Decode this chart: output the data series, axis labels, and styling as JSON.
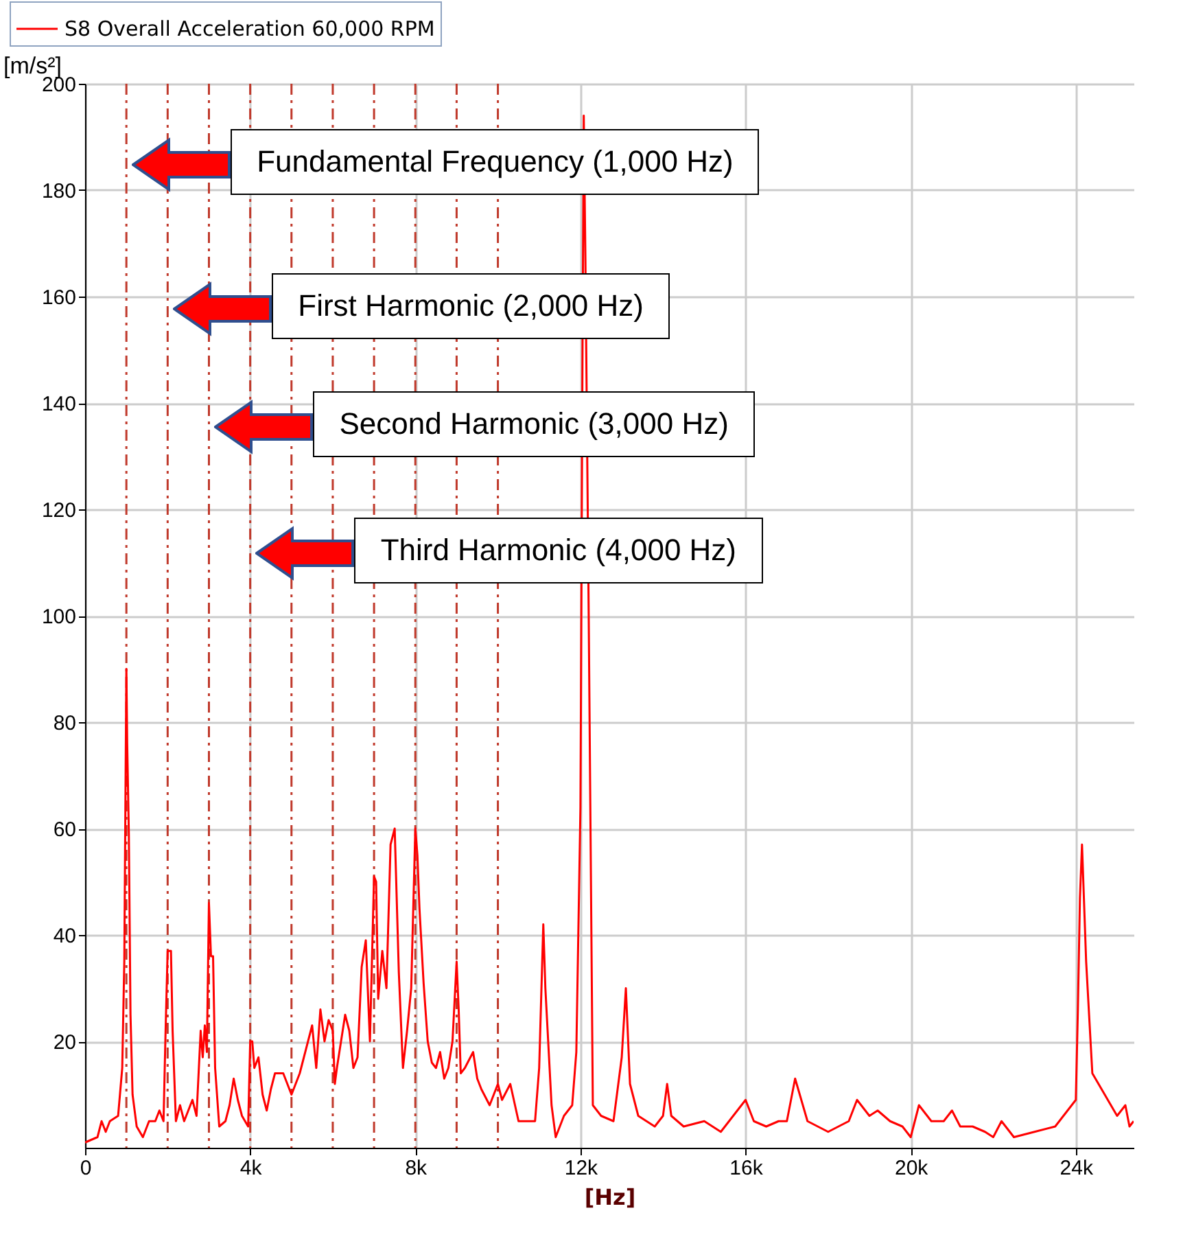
{
  "chart_data": {
    "type": "line",
    "xlabel": "[Hz]",
    "ylabel": "[m/s²]",
    "xlim": [
      0,
      25400
    ],
    "ylim": [
      0,
      200
    ],
    "xticks": [
      0,
      {
        "value": 4000,
        "label": "4k"
      },
      {
        "value": 8000,
        "label": "8k"
      },
      {
        "value": 12000,
        "label": "12k"
      },
      {
        "value": 16000,
        "label": "16k"
      },
      {
        "value": 20000,
        "label": "20k"
      },
      {
        "value": 24000,
        "label": "24k"
      }
    ],
    "yticks": [
      20,
      40,
      60,
      80,
      100,
      120,
      140,
      160,
      180,
      200
    ],
    "grid": true,
    "legend": "top left",
    "line_style": "solid",
    "marker": "none",
    "x": [
      0,
      300,
      400,
      500,
      600,
      800,
      900,
      950,
      1000,
      1020,
      1060,
      1100,
      1150,
      1250,
      1400,
      1550,
      1700,
      1800,
      1900,
      1950,
      2000,
      2080,
      2120,
      2200,
      2300,
      2400,
      2500,
      2600,
      2700,
      2800,
      2850,
      2900,
      2950,
      3000,
      3050,
      3100,
      3150,
      3250,
      3400,
      3500,
      3600,
      3700,
      3800,
      3950,
      4000,
      4050,
      4100,
      4200,
      4300,
      4400,
      4500,
      4600,
      4800,
      4900,
      5000,
      5100,
      5200,
      5300,
      5500,
      5600,
      5700,
      5800,
      5900,
      6000,
      6050,
      6100,
      6200,
      6300,
      6400,
      6500,
      6600,
      6700,
      6800,
      6900,
      7000,
      7050,
      7100,
      7200,
      7300,
      7400,
      7500,
      7600,
      7700,
      7800,
      7900,
      8000,
      8050,
      8100,
      8200,
      8300,
      8400,
      8500,
      8600,
      8700,
      8800,
      8900,
      9000,
      9050,
      9100,
      9200,
      9400,
      9500,
      9600,
      9800,
      10000,
      10100,
      10300,
      10500,
      10900,
      11000,
      11100,
      11150,
      11300,
      11400,
      11600,
      11800,
      11900,
      12000,
      12050,
      12080,
      12120,
      12200,
      12300,
      12500,
      12800,
      13000,
      13100,
      13200,
      13400,
      13800,
      14000,
      14100,
      14200,
      14500,
      15000,
      15400,
      15600,
      16000,
      16200,
      16500,
      16800,
      17000,
      17200,
      17500,
      18000,
      18500,
      18700,
      19000,
      19200,
      19500,
      19800,
      20000,
      20200,
      20500,
      20800,
      21000,
      21200,
      21500,
      21800,
      22000,
      22200,
      22500,
      23000,
      23500,
      23800,
      24000,
      24050,
      24100,
      24150,
      24250,
      24400,
      24700,
      25000,
      25200,
      25300,
      25400
    ],
    "series": [
      {
        "name": "S8 Overall Acceleration 60,000 RPM",
        "color": "#ff0000",
        "values": [
          1,
          2,
          5,
          3,
          5,
          6,
          15,
          35,
          90,
          76,
          59,
          25,
          10,
          4,
          2,
          5,
          5,
          7,
          5,
          22,
          37,
          37,
          22,
          5,
          8,
          5,
          7,
          9,
          6,
          22,
          17,
          23,
          18,
          46,
          36,
          36,
          15,
          4,
          5,
          8,
          13,
          9,
          6,
          4,
          20,
          20,
          15,
          17,
          10,
          7,
          11,
          14,
          14,
          12,
          10,
          12,
          14,
          17,
          23,
          15,
          26,
          20,
          24,
          22,
          12,
          15,
          20,
          25,
          22,
          15,
          17,
          34,
          39,
          20,
          51,
          50,
          28,
          37,
          30,
          57,
          60,
          33,
          15,
          22,
          30,
          60,
          55,
          45,
          31,
          20,
          16,
          15,
          18,
          13,
          15,
          20,
          35,
          26,
          14,
          15,
          18,
          13,
          11,
          8,
          12,
          9,
          12,
          5,
          5,
          15,
          42,
          30,
          8,
          2,
          6,
          8,
          18,
          64,
          150,
          194,
          167,
          100,
          8,
          6,
          5,
          17,
          30,
          12,
          6,
          4,
          6,
          12,
          6,
          4,
          5,
          3,
          5,
          9,
          5,
          4,
          5,
          5,
          13,
          5,
          3,
          5,
          9,
          6,
          7,
          5,
          4,
          2,
          8,
          5,
          5,
          7,
          4,
          4,
          3,
          2,
          5,
          2,
          3,
          4,
          7,
          9,
          26,
          47,
          57,
          35,
          14,
          10,
          6,
          8,
          4,
          5
        ]
      }
    ],
    "ref_lines": [
      {
        "axis": "x",
        "value": 1000,
        "color": "#c0392b",
        "line_style": "dashed"
      },
      {
        "axis": "x",
        "value": 2000,
        "color": "#c0392b",
        "line_style": "dashed"
      },
      {
        "axis": "x",
        "value": 3000,
        "color": "#c0392b",
        "line_style": "dashed"
      },
      {
        "axis": "x",
        "value": 4000,
        "color": "#c0392b",
        "line_style": "dashed"
      },
      {
        "axis": "x",
        "value": 5000,
        "color": "#c0392b",
        "line_style": "dashed"
      },
      {
        "axis": "x",
        "value": 6000,
        "color": "#c0392b",
        "line_style": "dashed"
      },
      {
        "axis": "x",
        "value": 7000,
        "color": "#c0392b",
        "line_style": "dashed"
      },
      {
        "axis": "x",
        "value": 8000,
        "color": "#c0392b",
        "line_style": "dashed"
      },
      {
        "axis": "x",
        "value": 9000,
        "color": "#c0392b",
        "line_style": "dashed"
      },
      {
        "axis": "x",
        "value": 10000,
        "color": "#c0392b",
        "line_style": "dashed"
      }
    ],
    "annotations": [
      "Fundamental Frequency (1,000 Hz)",
      "First Harmonic (2,000 Hz)",
      "Second Harmonic (3,000 Hz)",
      "Third Harmonic (4,000 Hz)"
    ]
  }
}
